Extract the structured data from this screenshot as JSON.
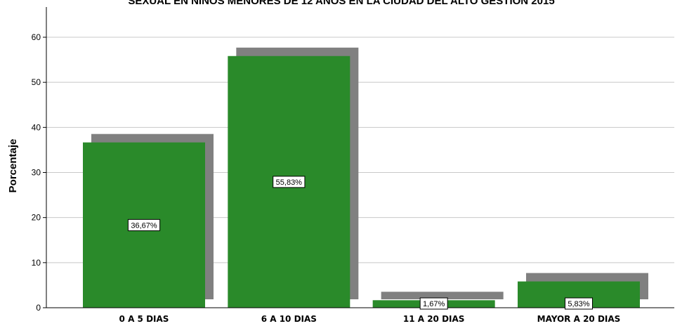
{
  "chart_data": {
    "type": "bar",
    "title": "SEXUAL EN NIÑOS MENORES DE 12 AÑOS EN LA CIUDAD DEL ALTO GESTION 2015",
    "xlabel": "",
    "ylabel": "Porcentaje",
    "categories": [
      "0 A 5 DIAS",
      "6 A 10 DIAS",
      "11 A 20 DIAS",
      "MAYOR A 20 DIAS"
    ],
    "values": [
      36.67,
      55.83,
      1.67,
      5.83
    ],
    "data_labels": [
      "36,67%",
      "55,83%",
      "1,67%",
      "5,83%"
    ],
    "ylim": [
      0,
      65
    ],
    "yticks": [
      0,
      10,
      20,
      30,
      40,
      50,
      60
    ],
    "grid": true,
    "legend": "none",
    "bar_color": "#2a8a2a",
    "shadow_color": "#808080",
    "grid_color": "#c8c8c8"
  }
}
